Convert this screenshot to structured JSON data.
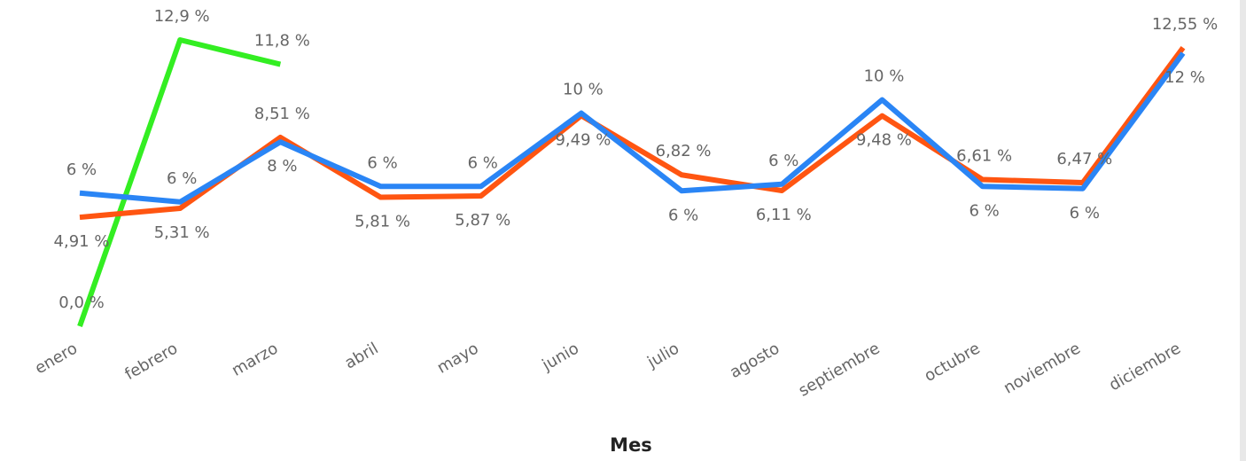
{
  "chart_data": {
    "type": "line",
    "x_label": "Mes",
    "categories": [
      "enero",
      "febrero",
      "marzo",
      "abril",
      "mayo",
      "junio",
      "julio",
      "agosto",
      "septiembre",
      "octubre",
      "noviembre",
      "diciembre"
    ],
    "series": [
      {
        "color": "#33ee22",
        "values": [
          0.0,
          12.9,
          11.8,
          null,
          null,
          null,
          null,
          null,
          null,
          null,
          null,
          null
        ],
        "value_labels": [
          "0,0 %",
          "12,9 %",
          "11,8 %",
          null,
          null,
          null,
          null,
          null,
          null,
          null,
          null,
          null
        ]
      },
      {
        "color": "#ff5511",
        "values": [
          4.91,
          5.31,
          8.51,
          5.81,
          5.87,
          9.49,
          6.82,
          6.11,
          9.48,
          6.61,
          6.47,
          12.55
        ],
        "value_labels": [
          "4,91 %",
          "5,31 %",
          "8,51 %",
          "5,81 %",
          "5,87 %",
          "9,49 %",
          "6,82 %",
          "6,11 %",
          "9,48 %",
          "6,61 %",
          "6,47 %",
          "12,55 %"
        ]
      },
      {
        "color": "#2a85f5",
        "values": [
          6.0,
          5.6,
          8.3,
          6.3,
          6.3,
          9.6,
          6.1,
          6.4,
          10.2,
          6.3,
          6.2,
          12.3
        ],
        "value_labels": [
          "6 %",
          "6 %",
          "8 %",
          "6 %",
          "6 %",
          "10 %",
          "6 %",
          "6 %",
          "10 %",
          "6 %",
          "6 %",
          "12 %"
        ]
      }
    ]
  }
}
